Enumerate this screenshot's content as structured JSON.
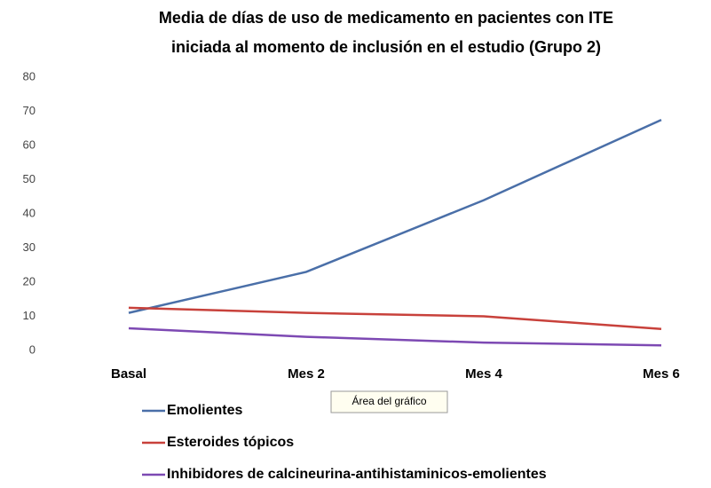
{
  "chart_data": {
    "type": "line",
    "title": [
      "Media de días de uso de medicamento en pacientes con ITE",
      "iniciada al momento de inclusión en el estudio (Grupo 2)"
    ],
    "categories": [
      "Basal",
      "Mes 2",
      "Mes 4",
      "Mes 6"
    ],
    "series": [
      {
        "name": "Emolientes",
        "color": "#4a6fa8",
        "values": [
          11,
          23,
          44,
          67.5
        ]
      },
      {
        "name": "Esteroides tópicos",
        "color": "#c8413b",
        "values": [
          12.5,
          11,
          10,
          6.3
        ]
      },
      {
        "name": "Inhibidores de calcineurina-antihistaminicos-emolientes",
        "color": "#7d49b3",
        "values": [
          6.5,
          4,
          2.3,
          1.5
        ]
      }
    ],
    "ylim": [
      0,
      80
    ],
    "yticks": [
      0,
      10,
      20,
      30,
      40,
      50,
      60,
      70,
      80
    ],
    "grid": false,
    "legend": "bottom",
    "tooltip": "Área del gráfico"
  }
}
